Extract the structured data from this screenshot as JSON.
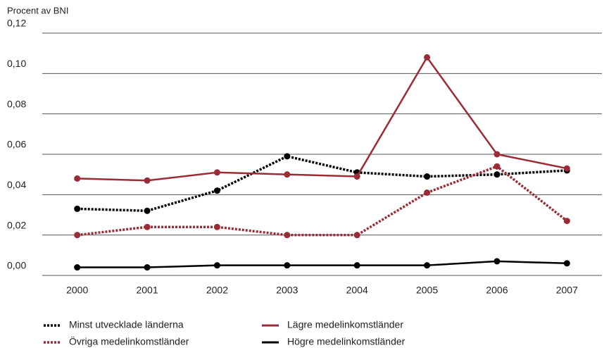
{
  "chart_data": {
    "type": "line",
    "ylabel": "Procent av BNI",
    "categories": [
      "2000",
      "2001",
      "2002",
      "2003",
      "2004",
      "2005",
      "2006",
      "2007"
    ],
    "series": [
      {
        "name": "Minst utvecklade länderna",
        "color": "#000000",
        "dashed": true,
        "values": [
          0.033,
          0.032,
          0.042,
          0.059,
          0.051,
          0.049,
          0.05,
          0.052
        ]
      },
      {
        "name": "Lägre medelinkomstländer",
        "color": "#9b2c35",
        "dashed": false,
        "values": [
          0.048,
          0.047,
          0.051,
          0.05,
          0.049,
          0.108,
          0.06,
          0.053
        ]
      },
      {
        "name": "Övriga medelinkomstländer",
        "color": "#9b2c35",
        "dashed": true,
        "values": [
          0.02,
          0.024,
          0.024,
          0.02,
          0.02,
          0.041,
          0.054,
          0.027
        ]
      },
      {
        "name": "Högre medelinkomstländer",
        "color": "#000000",
        "dashed": false,
        "values": [
          0.004,
          0.004,
          0.005,
          0.005,
          0.005,
          0.005,
          0.007,
          0.006
        ]
      }
    ],
    "ylim": [
      0,
      0.12
    ],
    "yticks": [
      {
        "value": 0,
        "label": "0,00"
      },
      {
        "value": 0.02,
        "label": "0,02"
      },
      {
        "value": 0.04,
        "label": "0,04"
      },
      {
        "value": 0.06,
        "label": "0,06"
      },
      {
        "value": 0.08,
        "label": "0,08"
      },
      {
        "value": 0.1,
        "label": "0,10"
      },
      {
        "value": 0.12,
        "label": "0,12"
      }
    ],
    "grid": true
  }
}
